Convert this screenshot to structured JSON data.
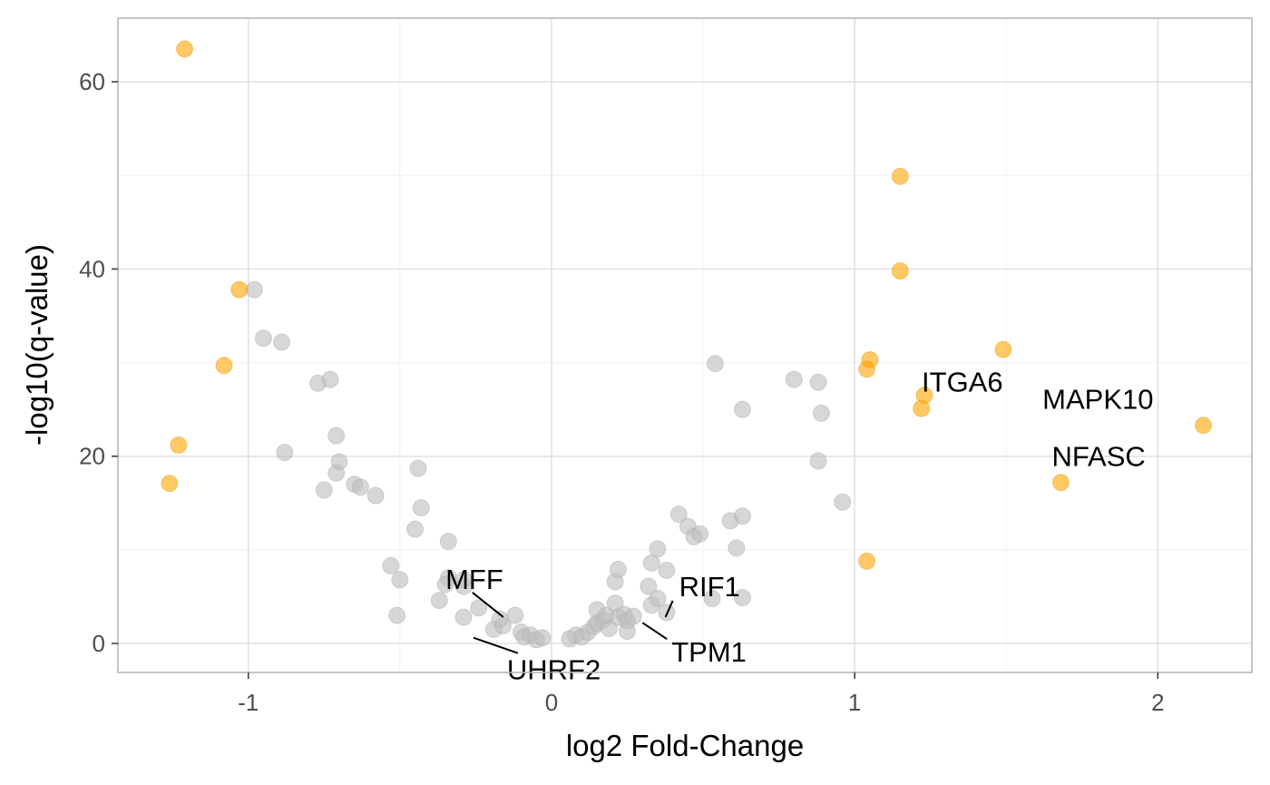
{
  "colors": {
    "background": "#ffffff",
    "panel_border": "#b3b3b3",
    "grid_major": "#e0e0e0",
    "grid_minor": "#f0f0f0",
    "highlight_point": "#ffa500",
    "background_point": "#bdbdbd",
    "label_line": "#000000"
  },
  "chart_data": {
    "type": "scatter",
    "title": "",
    "xlabel": "log2 Fold-Change",
    "ylabel": "-log10(q-value)",
    "xlim": [
      -1.43,
      2.31
    ],
    "ylim": [
      -3.1,
      66.8
    ],
    "x_ticks": [
      -1,
      0,
      1,
      2
    ],
    "x_tick_labels": [
      "-1",
      "0",
      "1",
      "2"
    ],
    "x_minor": [
      -0.5,
      0.5,
      1.5
    ],
    "y_ticks": [
      0,
      20,
      40,
      60
    ],
    "y_tick_labels": [
      "0",
      "20",
      "40",
      "60"
    ],
    "y_minor": [
      10,
      30,
      50
    ],
    "grid": true,
    "legend": "none",
    "series": [
      {
        "group": "significant",
        "color": "#ffa500",
        "points": [
          {
            "x": -1.21,
            "y": 63.5
          },
          {
            "x": -1.03,
            "y": 37.8
          },
          {
            "x": -1.08,
            "y": 29.7
          },
          {
            "x": -1.23,
            "y": 21.2
          },
          {
            "x": -1.26,
            "y": 17.1
          },
          {
            "x": 1.15,
            "y": 49.9
          },
          {
            "x": 1.15,
            "y": 39.8
          },
          {
            "x": 1.05,
            "y": 30.3
          },
          {
            "x": 1.04,
            "y": 29.3
          },
          {
            "x": 1.49,
            "y": 31.4
          },
          {
            "x": 1.23,
            "y": 26.5
          },
          {
            "x": 1.22,
            "y": 25.1
          },
          {
            "x": 2.15,
            "y": 23.3
          },
          {
            "x": 1.68,
            "y": 17.2
          },
          {
            "x": 1.04,
            "y": 8.8
          }
        ]
      },
      {
        "group": "not significant",
        "color": "#bdbdbd",
        "points": [
          {
            "x": -0.98,
            "y": 37.8
          },
          {
            "x": -0.95,
            "y": 32.6
          },
          {
            "x": -0.89,
            "y": 32.2
          },
          {
            "x": -0.88,
            "y": 20.4
          },
          {
            "x": -0.77,
            "y": 27.8
          },
          {
            "x": -0.73,
            "y": 28.2
          },
          {
            "x": -0.71,
            "y": 22.2
          },
          {
            "x": -0.7,
            "y": 19.4
          },
          {
            "x": -0.71,
            "y": 18.2
          },
          {
            "x": -0.75,
            "y": 16.4
          },
          {
            "x": -0.65,
            "y": 17.0
          },
          {
            "x": -0.63,
            "y": 16.7
          },
          {
            "x": -0.58,
            "y": 15.8
          },
          {
            "x": -0.44,
            "y": 18.7
          },
          {
            "x": -0.43,
            "y": 14.5
          },
          {
            "x": -0.45,
            "y": 12.2
          },
          {
            "x": -0.34,
            "y": 10.9
          },
          {
            "x": -0.53,
            "y": 8.3
          },
          {
            "x": -0.5,
            "y": 6.8
          },
          {
            "x": -0.34,
            "y": 7.0
          },
          {
            "x": -0.35,
            "y": 6.3
          },
          {
            "x": -0.29,
            "y": 6.8
          },
          {
            "x": -0.29,
            "y": 6.1
          },
          {
            "x": -0.37,
            "y": 4.6
          },
          {
            "x": -0.51,
            "y": 3.0
          },
          {
            "x": -0.29,
            "y": 2.8
          },
          {
            "x": -0.24,
            "y": 3.8
          },
          {
            "x": -0.19,
            "y": 1.5
          },
          {
            "x": -0.17,
            "y": 2.6
          },
          {
            "x": -0.16,
            "y": 1.9
          },
          {
            "x": -0.12,
            "y": 3.0
          },
          {
            "x": -0.1,
            "y": 1.2
          },
          {
            "x": -0.09,
            "y": 0.7
          },
          {
            "x": -0.07,
            "y": 0.9
          },
          {
            "x": -0.05,
            "y": 0.4
          },
          {
            "x": -0.03,
            "y": 0.6
          },
          {
            "x": 0.06,
            "y": 0.5
          },
          {
            "x": 0.08,
            "y": 0.9
          },
          {
            "x": 0.1,
            "y": 0.7
          },
          {
            "x": 0.12,
            "y": 1.2
          },
          {
            "x": 0.14,
            "y": 1.8
          },
          {
            "x": 0.15,
            "y": 2.2
          },
          {
            "x": 0.15,
            "y": 3.6
          },
          {
            "x": 0.17,
            "y": 2.5
          },
          {
            "x": 0.18,
            "y": 3.0
          },
          {
            "x": 0.19,
            "y": 1.6
          },
          {
            "x": 0.21,
            "y": 4.3
          },
          {
            "x": 0.21,
            "y": 6.6
          },
          {
            "x": 0.22,
            "y": 7.9
          },
          {
            "x": 0.22,
            "y": 2.8
          },
          {
            "x": 0.24,
            "y": 3.1
          },
          {
            "x": 0.25,
            "y": 2.4
          },
          {
            "x": 0.27,
            "y": 2.9
          },
          {
            "x": 0.25,
            "y": 1.3
          },
          {
            "x": 0.32,
            "y": 6.1
          },
          {
            "x": 0.33,
            "y": 8.6
          },
          {
            "x": 0.35,
            "y": 10.1
          },
          {
            "x": 0.33,
            "y": 4.1
          },
          {
            "x": 0.35,
            "y": 4.8
          },
          {
            "x": 0.38,
            "y": 7.8
          },
          {
            "x": 0.38,
            "y": 3.3
          },
          {
            "x": 0.42,
            "y": 13.8
          },
          {
            "x": 0.45,
            "y": 12.5
          },
          {
            "x": 0.47,
            "y": 11.4
          },
          {
            "x": 0.49,
            "y": 11.7
          },
          {
            "x": 0.54,
            "y": 29.9
          },
          {
            "x": 0.53,
            "y": 4.8
          },
          {
            "x": 0.59,
            "y": 13.1
          },
          {
            "x": 0.61,
            "y": 10.2
          },
          {
            "x": 0.63,
            "y": 13.6
          },
          {
            "x": 0.63,
            "y": 4.9
          },
          {
            "x": 0.63,
            "y": 25.0
          },
          {
            "x": 0.8,
            "y": 28.2
          },
          {
            "x": 0.88,
            "y": 27.9
          },
          {
            "x": 0.89,
            "y": 24.6
          },
          {
            "x": 0.88,
            "y": 19.5
          },
          {
            "x": 0.96,
            "y": 15.1
          }
        ]
      }
    ],
    "annotations": [
      {
        "text": "ITGA6",
        "x": 1.23,
        "y": 26.5
      },
      {
        "text": "MAPK10",
        "x": 2.15,
        "y": 23.3
      },
      {
        "text": "NFASC",
        "x": 1.68,
        "y": 17.2
      },
      {
        "text": "RIF1",
        "x": 0.4,
        "y": 3.4
      },
      {
        "text": "MFF",
        "x": -0.15,
        "y": 3.4
      },
      {
        "text": "UHRF2",
        "x": -0.06,
        "y": 0.9
      },
      {
        "text": "TPM1",
        "x": 0.3,
        "y": 2.6
      }
    ]
  }
}
